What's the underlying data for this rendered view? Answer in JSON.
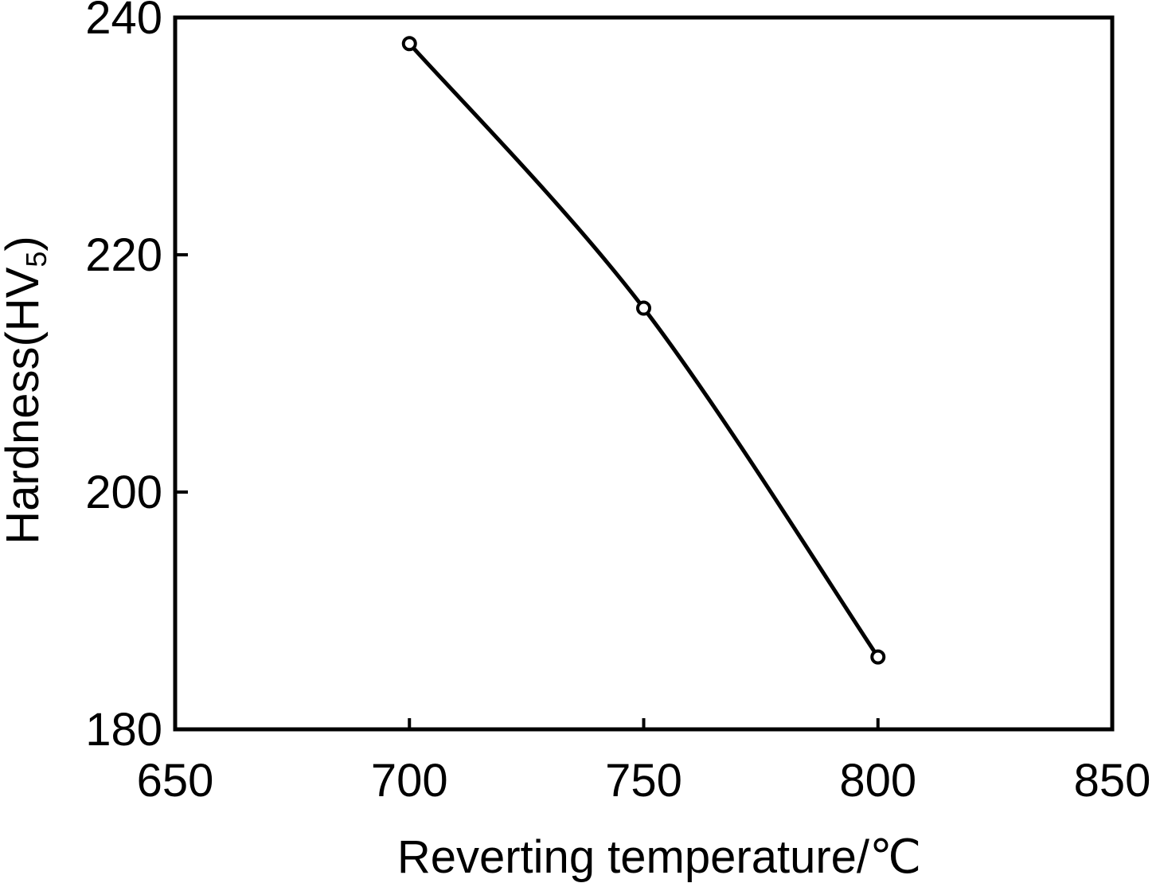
{
  "chart_data": {
    "type": "line",
    "title": "",
    "xlabel": "Reverting temperature/℃",
    "ylabel": "Hardness(HV",
    "ylabel_subscript": "5",
    "ylabel_close": ")",
    "xlim": [
      650,
      850
    ],
    "ylim": [
      180,
      240
    ],
    "xticks": [
      650,
      700,
      750,
      800,
      850
    ],
    "yticks": [
      180,
      200,
      220,
      240
    ],
    "xtick_labels": [
      "650",
      "700",
      "750",
      "800",
      "850"
    ],
    "ytick_labels": [
      "180",
      "200",
      "220",
      "240"
    ],
    "grid": false,
    "series": [
      {
        "name": "Hardness",
        "marker": "circle",
        "x": [
          700,
          750,
          800
        ],
        "y": [
          237.8,
          215.5,
          186.1
        ]
      }
    ]
  }
}
